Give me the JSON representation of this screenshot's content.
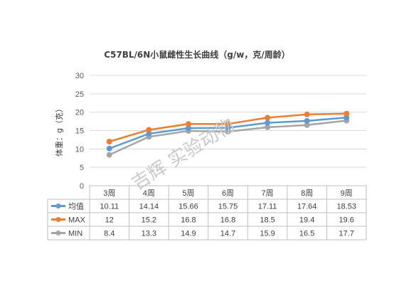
{
  "chart_data": {
    "type": "line",
    "title": "C57BL/6N小鼠雌性生长曲线（g/w，克/周龄）",
    "ylabel": "体重：g（克）",
    "ylim": [
      0,
      30
    ],
    "yticks": [
      0,
      5,
      10,
      15,
      20,
      25,
      30
    ],
    "ytick_labels": [
      "0",
      "5",
      "10",
      "15",
      "20",
      "25",
      "30"
    ],
    "categories": [
      "3周",
      "4周",
      "5周",
      "6周",
      "7周",
      "8周",
      "9周"
    ],
    "series": [
      {
        "name": "均值",
        "color": "#5b9bd5",
        "values": [
          10.11,
          14.14,
          15.66,
          15.75,
          17.11,
          17.64,
          18.53
        ],
        "labels": [
          "10.11",
          "14.14",
          "15.66",
          "15.75",
          "17.11",
          "17.64",
          "18.53"
        ]
      },
      {
        "name": "MAX",
        "color": "#ed7d31",
        "values": [
          12,
          15.2,
          16.8,
          16.8,
          18.5,
          19.4,
          19.6
        ],
        "labels": [
          "12",
          "15.2",
          "16.8",
          "16.8",
          "18.5",
          "19.4",
          "19.6"
        ]
      },
      {
        "name": "MIN",
        "color": "#a5a5a5",
        "values": [
          8.4,
          13.3,
          14.9,
          14.7,
          15.9,
          16.5,
          17.7
        ],
        "labels": [
          "8.4",
          "13.3",
          "14.9",
          "14.7",
          "15.9",
          "16.5",
          "17.7"
        ]
      }
    ],
    "grid": true,
    "legend": "data-table",
    "watermark": "吉辉 实验动物"
  }
}
